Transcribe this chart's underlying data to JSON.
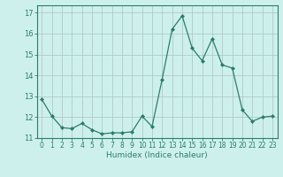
{
  "x": [
    0,
    1,
    2,
    3,
    4,
    5,
    6,
    7,
    8,
    9,
    10,
    11,
    12,
    13,
    14,
    15,
    16,
    17,
    18,
    19,
    20,
    21,
    22,
    23
  ],
  "y": [
    12.85,
    12.05,
    11.5,
    11.45,
    11.7,
    11.4,
    11.2,
    11.25,
    11.25,
    11.3,
    12.05,
    11.55,
    13.8,
    16.2,
    16.85,
    15.3,
    14.7,
    15.75,
    14.5,
    14.35,
    12.35,
    11.8,
    12.0,
    12.05
  ],
  "line_color": "#2a7d6e",
  "marker": "D",
  "marker_size": 2.0,
  "bg_color": "#cef0ec",
  "grid_color": "#b0cac8",
  "xlabel": "Humidex (Indice chaleur)",
  "ylim": [
    11.0,
    17.35
  ],
  "xlim": [
    -0.5,
    23.5
  ],
  "yticks": [
    11,
    12,
    13,
    14,
    15,
    16,
    17
  ],
  "xticks": [
    0,
    1,
    2,
    3,
    4,
    5,
    6,
    7,
    8,
    9,
    10,
    11,
    12,
    13,
    14,
    15,
    16,
    17,
    18,
    19,
    20,
    21,
    22,
    23
  ],
  "tick_color": "#2a7d6e",
  "xlabel_fontsize": 6.5,
  "tick_fontsize": 5.5,
  "ytick_fontsize": 6.0
}
